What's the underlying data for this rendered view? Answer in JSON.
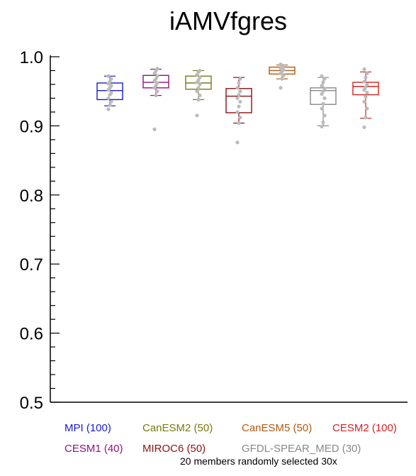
{
  "chart_data": {
    "type": "box",
    "title": "iAMVfgres",
    "xlabel": "",
    "ylabel": "",
    "ylim": [
      0.5,
      1.0
    ],
    "yticks": [
      "0.5",
      "0.6",
      "0.7",
      "0.8",
      "0.9",
      "1.0"
    ],
    "grid": false,
    "series": [
      {
        "name": "MPI (100)",
        "color": "#1a1ad0",
        "q1": 0.938,
        "median": 0.951,
        "q3": 0.962,
        "whisker_low": 0.929,
        "whisker_high": 0.972,
        "points": [
          0.924,
          0.93,
          0.935,
          0.94,
          0.945,
          0.948,
          0.952,
          0.955,
          0.958,
          0.961,
          0.964,
          0.968,
          0.972
        ]
      },
      {
        "name": "CESM1 (40)",
        "color": "#8e1380",
        "q1": 0.955,
        "median": 0.963,
        "q3": 0.973,
        "whisker_low": 0.944,
        "whisker_high": 0.982,
        "points": [
          0.895,
          0.944,
          0.95,
          0.955,
          0.958,
          0.962,
          0.965,
          0.968,
          0.972,
          0.976,
          0.98,
          0.983
        ]
      },
      {
        "name": "CanESM2 (50)",
        "color": "#7a7a10",
        "q1": 0.953,
        "median": 0.962,
        "q3": 0.972,
        "whisker_low": 0.938,
        "whisker_high": 0.98,
        "points": [
          0.915,
          0.938,
          0.944,
          0.95,
          0.955,
          0.96,
          0.963,
          0.966,
          0.97,
          0.974,
          0.978,
          0.98
        ]
      },
      {
        "name": "MIROC6 (50)",
        "color": "#8b1010",
        "q1": 0.919,
        "median": 0.943,
        "q3": 0.954,
        "whisker_low": 0.904,
        "whisker_high": 0.97,
        "points": [
          0.876,
          0.904,
          0.912,
          0.92,
          0.928,
          0.935,
          0.94,
          0.945,
          0.95,
          0.955,
          0.962,
          0.968
        ]
      },
      {
        "name": "CanESM5 (50)",
        "color": "#b05a10",
        "q1": 0.975,
        "median": 0.98,
        "q3": 0.985,
        "whisker_low": 0.968,
        "whisker_high": 0.988,
        "points": [
          0.955,
          0.968,
          0.973,
          0.976,
          0.979,
          0.981,
          0.983,
          0.985,
          0.987,
          0.989
        ]
      },
      {
        "name": "GFDL-SPEAR_MED (30)",
        "color": "#888888",
        "q1": 0.931,
        "median": 0.951,
        "q3": 0.955,
        "whisker_low": 0.9,
        "whisker_high": 0.97,
        "points": [
          0.899,
          0.905,
          0.915,
          0.925,
          0.932,
          0.94,
          0.946,
          0.95,
          0.954,
          0.958,
          0.963,
          0.968,
          0.972
        ]
      },
      {
        "name": "CESM2 (100)",
        "color": "#d62020",
        "q1": 0.945,
        "median": 0.957,
        "q3": 0.963,
        "whisker_low": 0.911,
        "whisker_high": 0.978,
        "points": [
          0.898,
          0.912,
          0.925,
          0.935,
          0.942,
          0.948,
          0.952,
          0.956,
          0.96,
          0.964,
          0.97,
          0.976,
          0.982
        ]
      }
    ],
    "point_color": "#bbbbbb",
    "annotation": "20 members randomly selected 30x"
  },
  "legend_items": [
    {
      "label": "MPI (100)",
      "color": "#1a1ad0"
    },
    {
      "label": "CanESM2 (50)",
      "color": "#7a7a10"
    },
    {
      "label": "CanESM5 (50)",
      "color": "#b05a10"
    },
    {
      "label": "CESM2 (100)",
      "color": "#d62020"
    },
    {
      "label": "CESM1 (40)",
      "color": "#8e1380"
    },
    {
      "label": "MIROC6 (50)",
      "color": "#8b1010"
    },
    {
      "label": "GFDL-SPEAR_MED (30)",
      "color": "#888888"
    }
  ]
}
